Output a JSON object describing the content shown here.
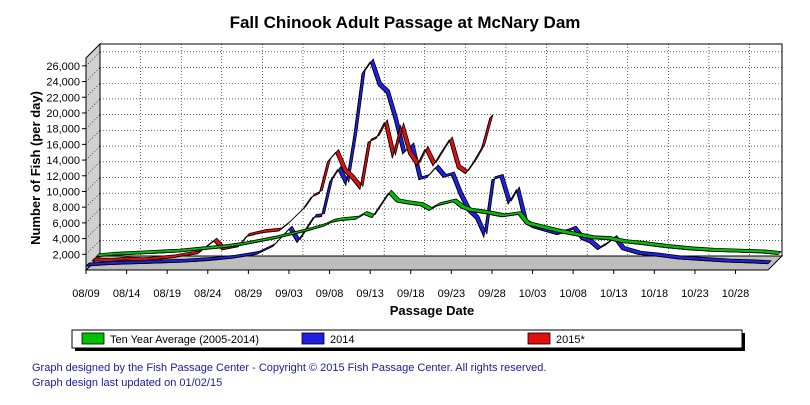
{
  "credits": {
    "line1": "Graph designed by the Fish Passage Center - Copyright © 2015 Fish Passage Center. All rights reserved.",
    "line2": "Graph design last updated on 01/02/15"
  },
  "chart_data": {
    "type": "line",
    "title": "Fall Chinook Adult Passage at McNary Dam",
    "xlabel": "Passage Date",
    "ylabel": "Number of Fish (per day)",
    "ylim": [
      0,
      27000
    ],
    "y_ticks": [
      2000,
      4000,
      6000,
      8000,
      10000,
      12000,
      14000,
      16000,
      18000,
      20000,
      22000,
      24000,
      26000
    ],
    "y_tick_labels": [
      "2,000",
      "4,000",
      "6,000",
      "8,000",
      "10,000",
      "12,000",
      "14,000",
      "16,000",
      "18,000",
      "20,000",
      "22,000",
      "24,000",
      "26,000"
    ],
    "x_start": "08/09",
    "x_span_days": 84,
    "x_tick_labels": [
      "08/09",
      "08/14",
      "08/19",
      "08/24",
      "08/29",
      "09/03",
      "09/08",
      "09/13",
      "09/18",
      "09/23",
      "09/28",
      "10/03",
      "10/08",
      "10/13",
      "10/18",
      "10/23",
      "10/28"
    ],
    "grid": true,
    "legend_position": "bottom",
    "series": [
      {
        "name": "Ten Year Average (2005-2014)",
        "color": "#00c000",
        "x": [
          "08/09",
          "08/11",
          "08/13",
          "08/15",
          "08/17",
          "08/19",
          "08/21",
          "08/23",
          "08/25",
          "08/27",
          "08/29",
          "08/31",
          "09/02",
          "09/04",
          "09/06",
          "09/07",
          "09/08",
          "09/10",
          "09/11",
          "09/12",
          "09/14",
          "09/15",
          "09/16",
          "09/18",
          "09/19",
          "09/20",
          "09/22",
          "09/23",
          "09/24",
          "09/26",
          "09/28",
          "09/30",
          "10/01",
          "10/03",
          "10/05",
          "10/07",
          "10/09",
          "10/11",
          "10/13",
          "10/15",
          "10/18",
          "10/21",
          "10/24",
          "10/27",
          "10/30",
          "11/01"
        ],
        "values": [
          400,
          600,
          700,
          800,
          900,
          1000,
          1200,
          1400,
          1600,
          1900,
          2300,
          2700,
          3200,
          3700,
          4300,
          4800,
          5000,
          5200,
          5800,
          5400,
          8500,
          7400,
          7200,
          6900,
          6300,
          6900,
          7400,
          6600,
          6200,
          5900,
          5500,
          5800,
          4500,
          4000,
          3500,
          3100,
          2700,
          2600,
          2200,
          2000,
          1600,
          1300,
          1100,
          1000,
          900,
          700
        ]
      },
      {
        "name": "2014",
        "color": "#2020e0",
        "x": [
          "08/09",
          "08/12",
          "08/15",
          "08/18",
          "08/21",
          "08/24",
          "08/27",
          "08/30",
          "09/01",
          "09/03",
          "09/04",
          "09/06",
          "09/07",
          "09/08",
          "09/09",
          "09/10",
          "09/11",
          "09/12",
          "09/13",
          "09/14",
          "09/15",
          "09/16",
          "09/17",
          "09/18",
          "09/19",
          "09/20",
          "09/21",
          "09/22",
          "09/23",
          "09/24",
          "09/25",
          "09/26",
          "09/27",
          "09/28",
          "09/29",
          "09/30",
          "10/01",
          "10/02",
          "10/03",
          "10/04",
          "10/06",
          "10/07",
          "10/08",
          "10/09",
          "10/10",
          "10/11",
          "10/12",
          "10/13",
          "10/14",
          "10/16",
          "10/18",
          "10/21",
          "10/24",
          "10/27",
          "10/30",
          "11/01"
        ],
        "values": [
          500,
          700,
          800,
          900,
          1000,
          1200,
          1500,
          2000,
          3000,
          5200,
          3500,
          6700,
          6800,
          11200,
          12800,
          10800,
          17200,
          25000,
          26500,
          23500,
          22500,
          19000,
          14800,
          15800,
          11500,
          11800,
          13000,
          11800,
          12100,
          9500,
          7500,
          6500,
          4200,
          11500,
          11800,
          8400,
          10200,
          6000,
          5400,
          5100,
          4500,
          4800,
          5200,
          3900,
          3500,
          2600,
          3200,
          4000,
          2600,
          2000,
          1800,
          1400,
          1200,
          1000,
          900,
          800
        ]
      },
      {
        "name": "2015*",
        "color": "#e01010",
        "x": [
          "08/09",
          "08/11",
          "08/13",
          "08/15",
          "08/17",
          "08/19",
          "08/20",
          "08/22",
          "08/24",
          "08/25",
          "08/27",
          "08/28",
          "08/30",
          "09/01",
          "09/02",
          "09/03",
          "09/04",
          "09/05",
          "09/06",
          "09/07",
          "09/08",
          "09/09",
          "09/10",
          "09/11",
          "09/12",
          "09/13",
          "09/14",
          "09/15",
          "09/16",
          "09/17",
          "09/18",
          "09/19",
          "09/20",
          "09/21",
          "09/22",
          "09/23",
          "09/24",
          "09/25",
          "09/26",
          "09/27"
        ],
        "values": [
          400,
          300,
          500,
          400,
          600,
          800,
          1000,
          1300,
          2900,
          1800,
          2200,
          3500,
          4000,
          4200,
          5000,
          6000,
          7000,
          8500,
          9000,
          13000,
          14200,
          11800,
          10800,
          9500,
          15500,
          16000,
          18000,
          13500,
          17600,
          14000,
          12500,
          14600,
          12500,
          14200,
          15800,
          12200,
          11500,
          13000,
          14800,
          18600
        ]
      }
    ]
  }
}
